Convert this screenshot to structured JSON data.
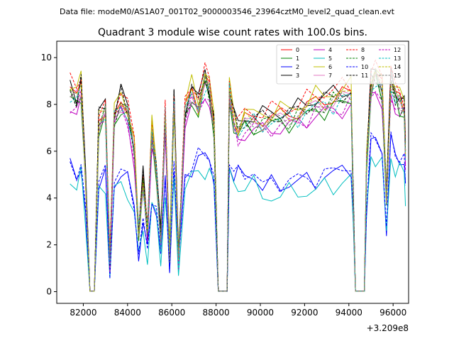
{
  "figure": {
    "suptitle": "Data file: modeM0/AS1A07_001T02_9000003546_23964cztM0_level2_quad_clean.evt"
  },
  "chart_data": {
    "type": "line",
    "title": "Quadrant 3 module wise count rates with 100.0s bins.",
    "xlabel": "",
    "ylabel": "",
    "x_offset_label": "+3.209e8",
    "xlim": [
      80800,
      96700
    ],
    "ylim": [
      -0.5,
      10.7
    ],
    "xticks": [
      82000,
      84000,
      86000,
      88000,
      90000,
      92000,
      94000,
      96000
    ],
    "yticks": [
      0,
      2,
      4,
      6,
      8,
      10
    ],
    "grid": false,
    "legend_position": "top-right",
    "series_styles": [
      {
        "name": "0",
        "color": "#ff0000",
        "dash": "solid"
      },
      {
        "name": "1",
        "color": "#008000",
        "dash": "solid"
      },
      {
        "name": "2",
        "color": "#0000ff",
        "dash": "solid"
      },
      {
        "name": "3",
        "color": "#000000",
        "dash": "solid"
      },
      {
        "name": "4",
        "color": "#bf00bf",
        "dash": "solid"
      },
      {
        "name": "5",
        "color": "#00bfbf",
        "dash": "solid"
      },
      {
        "name": "6",
        "color": "#bfbf00",
        "dash": "solid"
      },
      {
        "name": "7",
        "color": "#e377c2",
        "dash": "solid"
      },
      {
        "name": "8",
        "color": "#ff0000",
        "dash": "dashed"
      },
      {
        "name": "9",
        "color": "#008000",
        "dash": "dashed"
      },
      {
        "name": "10",
        "color": "#0000ff",
        "dash": "dashed"
      },
      {
        "name": "11",
        "color": "#000000",
        "dash": "dashed"
      },
      {
        "name": "12",
        "color": "#bf00bf",
        "dash": "dashed"
      },
      {
        "name": "13",
        "color": "#00bfbf",
        "dash": "dashed"
      },
      {
        "name": "14",
        "color": "#bfbf00",
        "dash": "dashed"
      },
      {
        "name": "15",
        "color": "#7f7f7f",
        "dash": "dashed"
      }
    ],
    "base_x": [
      81400,
      81700,
      81900,
      82100,
      82300,
      82500,
      82700,
      83000,
      83200,
      83400,
      83700,
      84000,
      84300,
      84500,
      84700,
      84900,
      85100,
      85300,
      85500,
      85700,
      85900,
      86100,
      86300,
      86600,
      86900,
      87200,
      87500,
      87700,
      87900,
      88100,
      88500,
      88600,
      88800,
      89000,
      89300,
      89700,
      90100,
      90500,
      90900,
      91300,
      91700,
      92100,
      92500,
      92900,
      93300,
      93700,
      94100,
      94200,
      94300,
      94700,
      94800,
      95000,
      95200,
      95500,
      95700,
      95900,
      96100,
      96300,
      96500,
      96560
    ],
    "base_high": [
      8.6,
      8.3,
      8.9,
      5.0,
      0.05,
      0.05,
      7.4,
      7.9,
      1.2,
      7.6,
      8.3,
      7.8,
      6.1,
      2.6,
      4.8,
      2.6,
      6.9,
      5.3,
      2.2,
      7.6,
      1.5,
      8.4,
      1.3,
      7.8,
      8.6,
      8.1,
      9.1,
      8.7,
      7.2,
      0.05,
      0.05,
      8.7,
      7.4,
      7.0,
      7.3,
      7.4,
      7.4,
      7.5,
      7.5,
      7.6,
      7.7,
      7.9,
      8.1,
      8.2,
      8.3,
      8.4,
      8.5,
      4.0,
      0.05,
      0.05,
      5.5,
      9.0,
      9.3,
      8.7,
      4.1,
      9.1,
      8.4,
      8.2,
      8.0,
      6.0
    ],
    "base_low": [
      5.6,
      5.1,
      5.7,
      3.3,
      0.05,
      0.05,
      4.8,
      5.1,
      0.9,
      4.9,
      5.2,
      4.9,
      4.0,
      1.6,
      3.0,
      1.7,
      4.3,
      3.5,
      1.5,
      4.9,
      1.3,
      5.3,
      1.2,
      5.1,
      5.6,
      5.8,
      6.0,
      5.9,
      5.2,
      0.05,
      0.05,
      5.7,
      5.2,
      5.1,
      5.3,
      5.2,
      4.6,
      4.7,
      4.8,
      4.8,
      4.9,
      4.9,
      5.0,
      5.1,
      5.2,
      5.4,
      5.6,
      3.0,
      0.05,
      0.05,
      3.8,
      6.5,
      6.7,
      6.3,
      2.8,
      6.6,
      6.1,
      5.9,
      5.8,
      4.4
    ],
    "series_scale": [
      1.0,
      0.95,
      0.96,
      1.02,
      0.93,
      0.87,
      1.03,
      0.98,
      1.04,
      0.97,
      0.98,
      1.0,
      0.94,
      0.97,
      0.99,
      0.98
    ],
    "series_baseline": [
      "high",
      "high",
      "low",
      "high",
      "high",
      "low",
      "high",
      "high",
      "high",
      "high",
      "low",
      "high",
      "high",
      "high",
      "high",
      "high"
    ]
  }
}
